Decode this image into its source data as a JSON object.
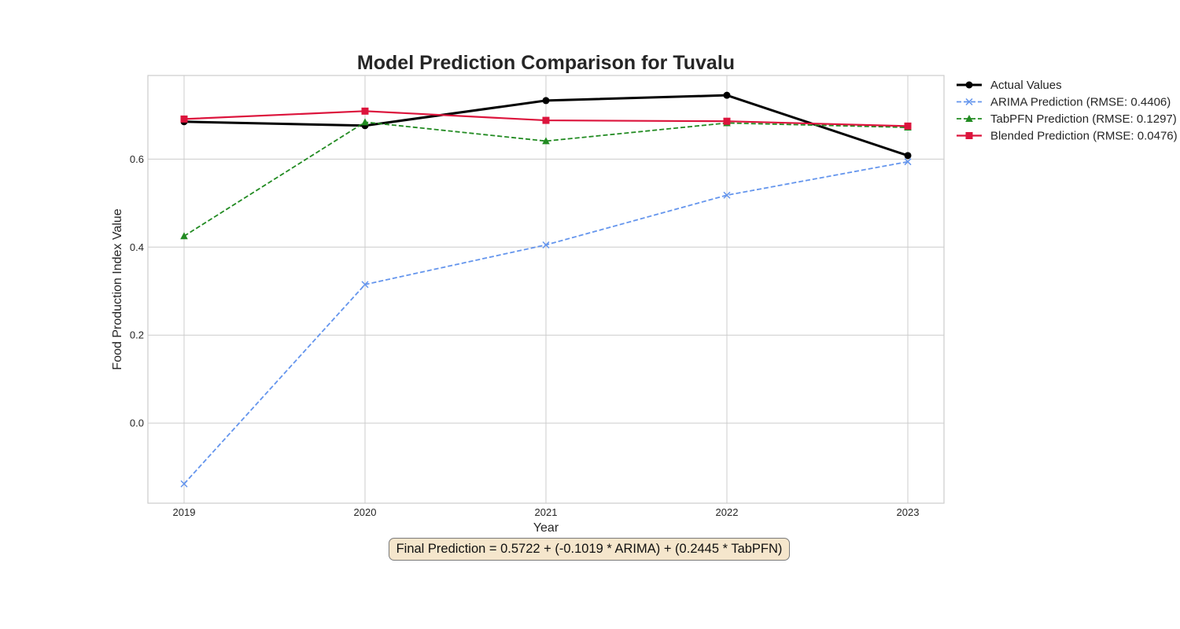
{
  "chart_data": {
    "type": "line",
    "title": "Model Prediction Comparison for Tuvalu",
    "xlabel": "Year",
    "ylabel": "Food Production Index Value",
    "x": [
      "2019",
      "2020",
      "2021",
      "2022",
      "2023"
    ],
    "ylim": [
      -0.182,
      0.79
    ],
    "yticks": [
      "0.0",
      "0.2",
      "0.4",
      "0.6"
    ],
    "grid": true,
    "legend_position": "outside-top-right",
    "series": [
      {
        "name": "Actual Values",
        "values": [
          0.685,
          0.676,
          0.733,
          0.745,
          0.608
        ],
        "color": "#000000",
        "marker": "circle",
        "linestyle": "solid"
      },
      {
        "name": "ARIMA Prediction (RMSE: 0.4406)",
        "values": [
          -0.138,
          0.315,
          0.405,
          0.518,
          0.594
        ],
        "color": "#6495ED",
        "marker": "x",
        "linestyle": "dashed"
      },
      {
        "name": "TabPFN Prediction (RMSE: 0.1297)",
        "values": [
          0.425,
          0.684,
          0.641,
          0.682,
          0.672
        ],
        "color": "#228B22",
        "marker": "triangle",
        "linestyle": "dashed"
      },
      {
        "name": "Blended Prediction (RMSE: 0.0476)",
        "values": [
          0.691,
          0.709,
          0.688,
          0.686,
          0.675
        ],
        "color": "#DC143C",
        "marker": "square",
        "linestyle": "solid"
      }
    ],
    "annotation": "Final Prediction = 0.5722 + (-0.1019 * ARIMA) + (0.2445 * TabPFN)"
  }
}
